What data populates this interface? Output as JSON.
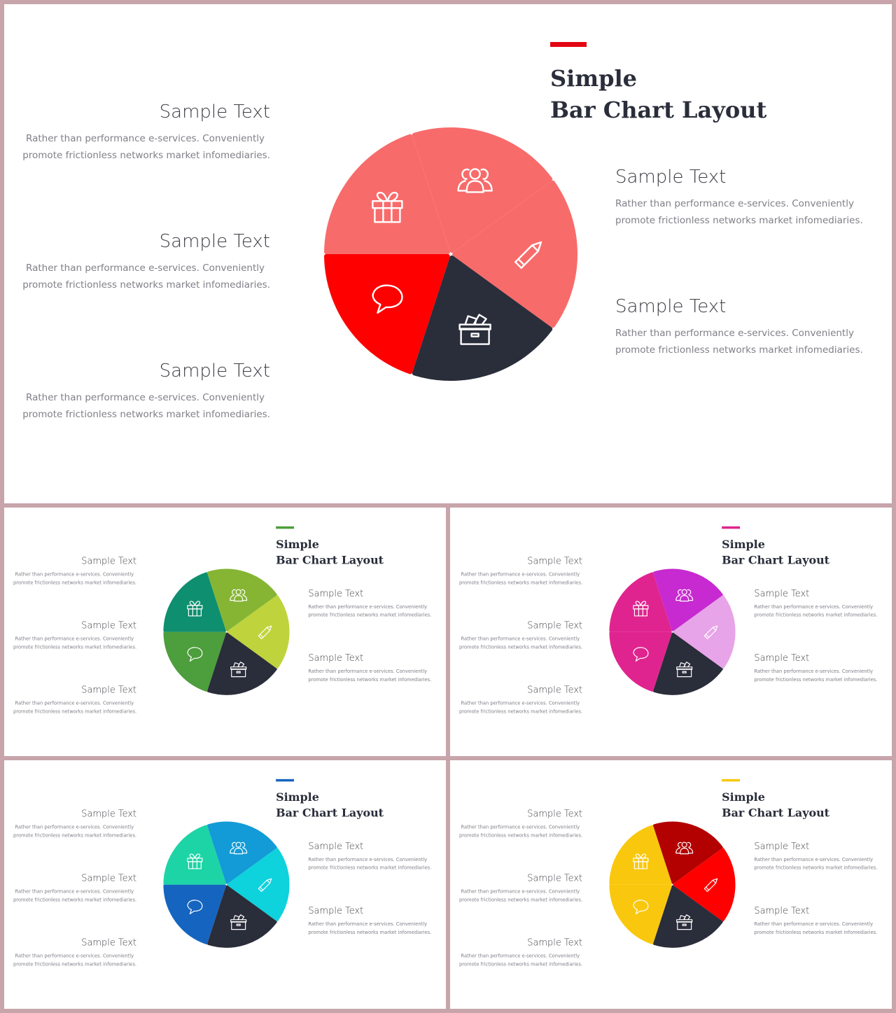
{
  "title_line1": "Simple",
  "title_line2": "Bar Chart Layout",
  "item_heading": "Sample Text",
  "item_body_line1": "Rather than performance e-services. Conveniently",
  "item_body_line2": "promote frictionless networks market infomediaries.",
  "icons": [
    "speech-bubble-icon",
    "gift-icon",
    "users-icon",
    "pencil-icon",
    "ballot-box-icon"
  ],
  "variants": [
    {
      "name": "red",
      "accent": "#e30613",
      "colors": [
        "#ff0000",
        "#f86b6b",
        "#f86b6b",
        "#f86b6b",
        "#2a2d3a"
      ]
    },
    {
      "name": "green",
      "accent": "#4d9e3c",
      "colors": [
        "#4d9e3c",
        "#0e8f6f",
        "#86b534",
        "#bfd43c",
        "#2a2d3a"
      ]
    },
    {
      "name": "magenta",
      "accent": "#e0248f",
      "colors": [
        "#e0248f",
        "#e0248f",
        "#c62ad0",
        "#e8a4e8",
        "#2a2d3a"
      ]
    },
    {
      "name": "blue",
      "accent": "#1565c0",
      "colors": [
        "#1565c0",
        "#1dd4a6",
        "#129bd6",
        "#0ed2dc",
        "#2a2d3a"
      ]
    },
    {
      "name": "yellow",
      "accent": "#f9c80e",
      "colors": [
        "#f9c80e",
        "#f9c80e",
        "#b30000",
        "#ff0000",
        "#2a2d3a"
      ]
    }
  ]
}
